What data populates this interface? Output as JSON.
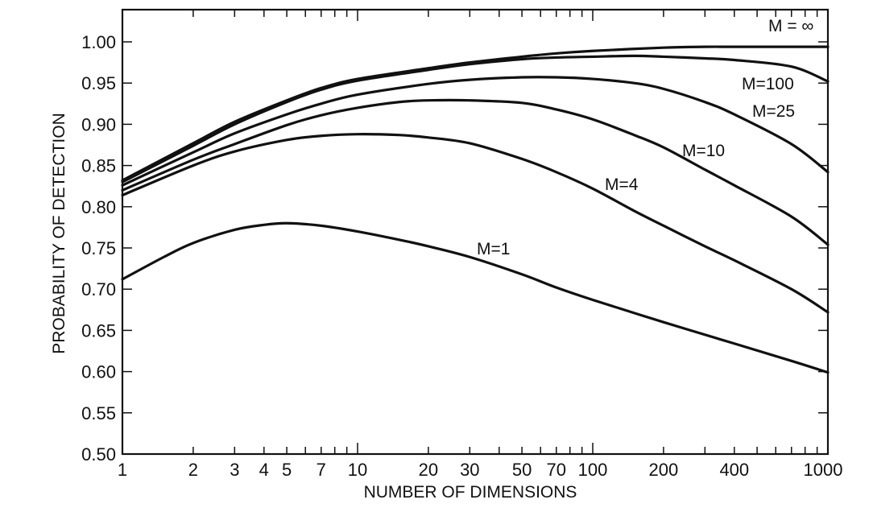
{
  "chart_data": {
    "type": "line",
    "title": "",
    "xlabel": "NUMBER OF DIMENSIONS",
    "ylabel": "PROBABILITY OF DETECTION",
    "x_scale": "log",
    "xlim": [
      1,
      1000
    ],
    "ylim": [
      0.5,
      1.03
    ],
    "grid": false,
    "x_ticks_labeled": [
      {
        "value": 1,
        "label": "1"
      },
      {
        "value": 2,
        "label": "2"
      },
      {
        "value": 3,
        "label": "3"
      },
      {
        "value": 4,
        "label": "4"
      },
      {
        "value": 5,
        "label": "5"
      },
      {
        "value": 7,
        "label": "7"
      },
      {
        "value": 10,
        "label": "10"
      },
      {
        "value": 20,
        "label": "20"
      },
      {
        "value": 30,
        "label": "30"
      },
      {
        "value": 50,
        "label": "50"
      },
      {
        "value": 70,
        "label": "70"
      },
      {
        "value": 100,
        "label": "100"
      },
      {
        "value": 200,
        "label": "200"
      },
      {
        "value": 400,
        "label": "400"
      },
      {
        "value": 1000,
        "label": "1000"
      }
    ],
    "y_ticks": [
      {
        "value": 0.5,
        "label": "0.50"
      },
      {
        "value": 0.55,
        "label": "0.55"
      },
      {
        "value": 0.6,
        "label": "0.60"
      },
      {
        "value": 0.65,
        "label": "0.65"
      },
      {
        "value": 0.7,
        "label": "0.70"
      },
      {
        "value": 0.75,
        "label": "0.75"
      },
      {
        "value": 0.8,
        "label": "0.80"
      },
      {
        "value": 0.85,
        "label": "0.85"
      },
      {
        "value": 0.9,
        "label": "0.90"
      },
      {
        "value": 0.95,
        "label": "0.95"
      },
      {
        "value": 1.0,
        "label": "1.00"
      }
    ],
    "series": [
      {
        "name": "M = ∞",
        "x": [
          1,
          2,
          3,
          5,
          7,
          10,
          20,
          30,
          50,
          70,
          100,
          200,
          300,
          400,
          700,
          1000
        ],
        "values": [
          0.832,
          0.877,
          0.903,
          0.929,
          0.944,
          0.955,
          0.968,
          0.975,
          0.982,
          0.986,
          0.989,
          0.993,
          0.994,
          0.994,
          0.994,
          0.994
        ]
      },
      {
        "name": "M=100",
        "x": [
          1,
          2,
          3,
          5,
          7,
          10,
          20,
          30,
          50,
          70,
          100,
          150,
          200,
          300,
          400,
          700,
          1000
        ],
        "values": [
          0.83,
          0.874,
          0.9,
          0.927,
          0.942,
          0.953,
          0.966,
          0.973,
          0.979,
          0.981,
          0.982,
          0.983,
          0.982,
          0.98,
          0.978,
          0.97,
          0.952
        ]
      },
      {
        "name": "M=25",
        "x": [
          1,
          2,
          3,
          5,
          7,
          10,
          20,
          30,
          50,
          70,
          100,
          150,
          200,
          300,
          400,
          700,
          1000
        ],
        "values": [
          0.826,
          0.866,
          0.889,
          0.912,
          0.925,
          0.936,
          0.949,
          0.954,
          0.957,
          0.957,
          0.955,
          0.95,
          0.943,
          0.927,
          0.912,
          0.876,
          0.842
        ]
      },
      {
        "name": "M=10",
        "x": [
          1,
          2,
          3,
          5,
          7,
          10,
          15,
          20,
          30,
          50,
          70,
          100,
          150,
          200,
          300,
          400,
          700,
          1000
        ],
        "values": [
          0.82,
          0.857,
          0.876,
          0.899,
          0.911,
          0.92,
          0.927,
          0.929,
          0.929,
          0.926,
          0.918,
          0.906,
          0.887,
          0.872,
          0.845,
          0.826,
          0.788,
          0.754
        ]
      },
      {
        "name": "M=4",
        "x": [
          1,
          2,
          3,
          5,
          7,
          10,
          15,
          20,
          30,
          50,
          70,
          100,
          150,
          200,
          300,
          400,
          700,
          1000
        ],
        "values": [
          0.814,
          0.85,
          0.867,
          0.881,
          0.886,
          0.888,
          0.887,
          0.884,
          0.877,
          0.858,
          0.842,
          0.822,
          0.795,
          0.777,
          0.752,
          0.735,
          0.7,
          0.672
        ]
      },
      {
        "name": "M=1",
        "x": [
          1,
          1.5,
          2,
          3,
          4,
          5,
          7,
          10,
          15,
          20,
          30,
          50,
          70,
          100,
          200,
          400,
          700,
          1000
        ],
        "values": [
          0.712,
          0.739,
          0.756,
          0.772,
          0.778,
          0.78,
          0.777,
          0.77,
          0.76,
          0.752,
          0.739,
          0.718,
          0.702,
          0.687,
          0.66,
          0.634,
          0.613,
          0.599
        ]
      }
    ]
  }
}
